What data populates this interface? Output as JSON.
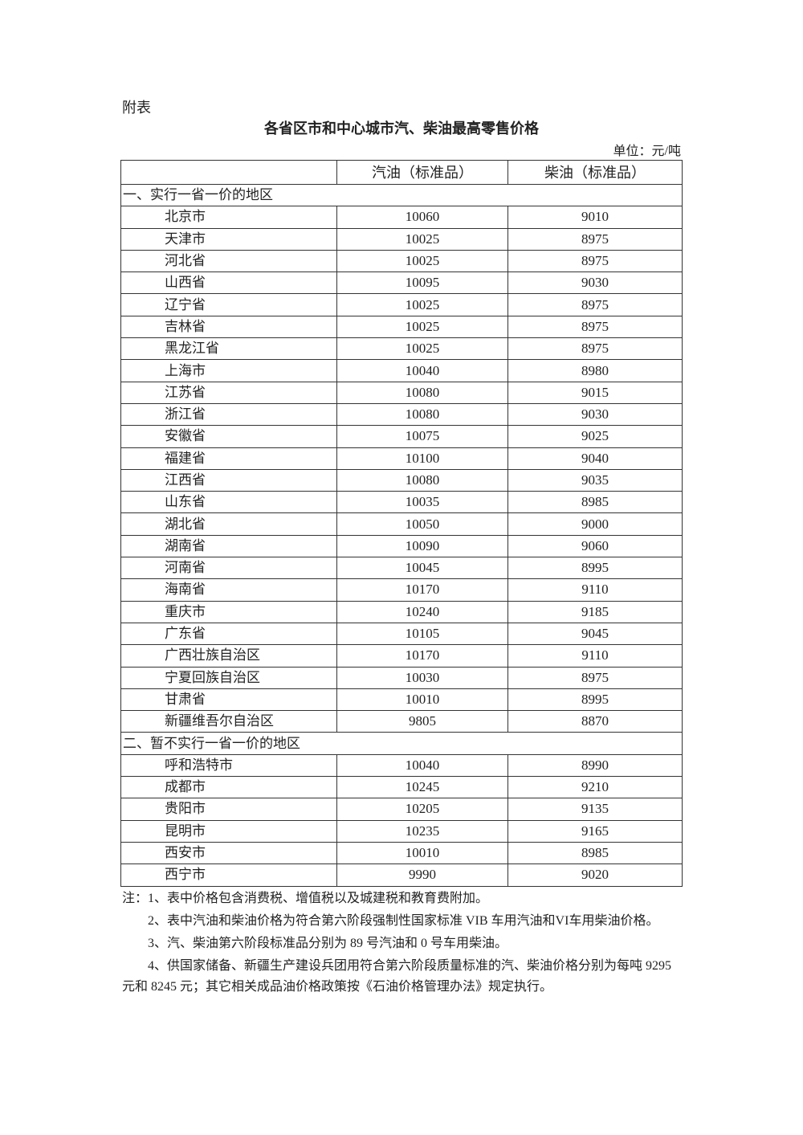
{
  "annex_label": "附表",
  "title": "各省区市和中心城市汽、柴油最高零售价格",
  "unit": "单位：元/吨",
  "table": {
    "headers": [
      "",
      "汽油（标准品）",
      "柴油（标准品）"
    ],
    "sections": [
      {
        "label": "一、实行一省一价的地区",
        "rows": [
          [
            "北京市",
            "10060",
            "9010"
          ],
          [
            "天津市",
            "10025",
            "8975"
          ],
          [
            "河北省",
            "10025",
            "8975"
          ],
          [
            "山西省",
            "10095",
            "9030"
          ],
          [
            "辽宁省",
            "10025",
            "8975"
          ],
          [
            "吉林省",
            "10025",
            "8975"
          ],
          [
            "黑龙江省",
            "10025",
            "8975"
          ],
          [
            "上海市",
            "10040",
            "8980"
          ],
          [
            "江苏省",
            "10080",
            "9015"
          ],
          [
            "浙江省",
            "10080",
            "9030"
          ],
          [
            "安徽省",
            "10075",
            "9025"
          ],
          [
            "福建省",
            "10100",
            "9040"
          ],
          [
            "江西省",
            "10080",
            "9035"
          ],
          [
            "山东省",
            "10035",
            "8985"
          ],
          [
            "湖北省",
            "10050",
            "9000"
          ],
          [
            "湖南省",
            "10090",
            "9060"
          ],
          [
            "河南省",
            "10045",
            "8995"
          ],
          [
            "海南省",
            "10170",
            "9110"
          ],
          [
            "重庆市",
            "10240",
            "9185"
          ],
          [
            "广东省",
            "10105",
            "9045"
          ],
          [
            "广西壮族自治区",
            "10170",
            "9110"
          ],
          [
            "宁夏回族自治区",
            "10030",
            "8975"
          ],
          [
            "甘肃省",
            "10010",
            "8995"
          ],
          [
            "新疆维吾尔自治区",
            "9805",
            "8870"
          ]
        ]
      },
      {
        "label": "二、暂不实行一省一价的地区",
        "rows": [
          [
            "呼和浩特市",
            "10040",
            "8990"
          ],
          [
            "成都市",
            "10245",
            "9210"
          ],
          [
            "贵阳市",
            "10205",
            "9135"
          ],
          [
            "昆明市",
            "10235",
            "9165"
          ],
          [
            "西安市",
            "10010",
            "8985"
          ],
          [
            "西宁市",
            "9990",
            "9020"
          ]
        ]
      }
    ]
  },
  "notes": [
    "注：1、表中价格包含消费税、增值税以及城建税和教育费附加。",
    "2、表中汽油和柴油价格为符合第六阶段强制性国家标准 VIB 车用汽油和VI车用柴油价格。",
    "3、汽、柴油第六阶段标准品分别为 89 号汽油和 0 号车用柴油。",
    "4、供国家储备、新疆生产建设兵团用符合第六阶段质量标准的汽、柴油价格分别为每吨 9295 元和 8245 元；其它相关成品油价格政策按《石油价格管理办法》规定执行。"
  ]
}
